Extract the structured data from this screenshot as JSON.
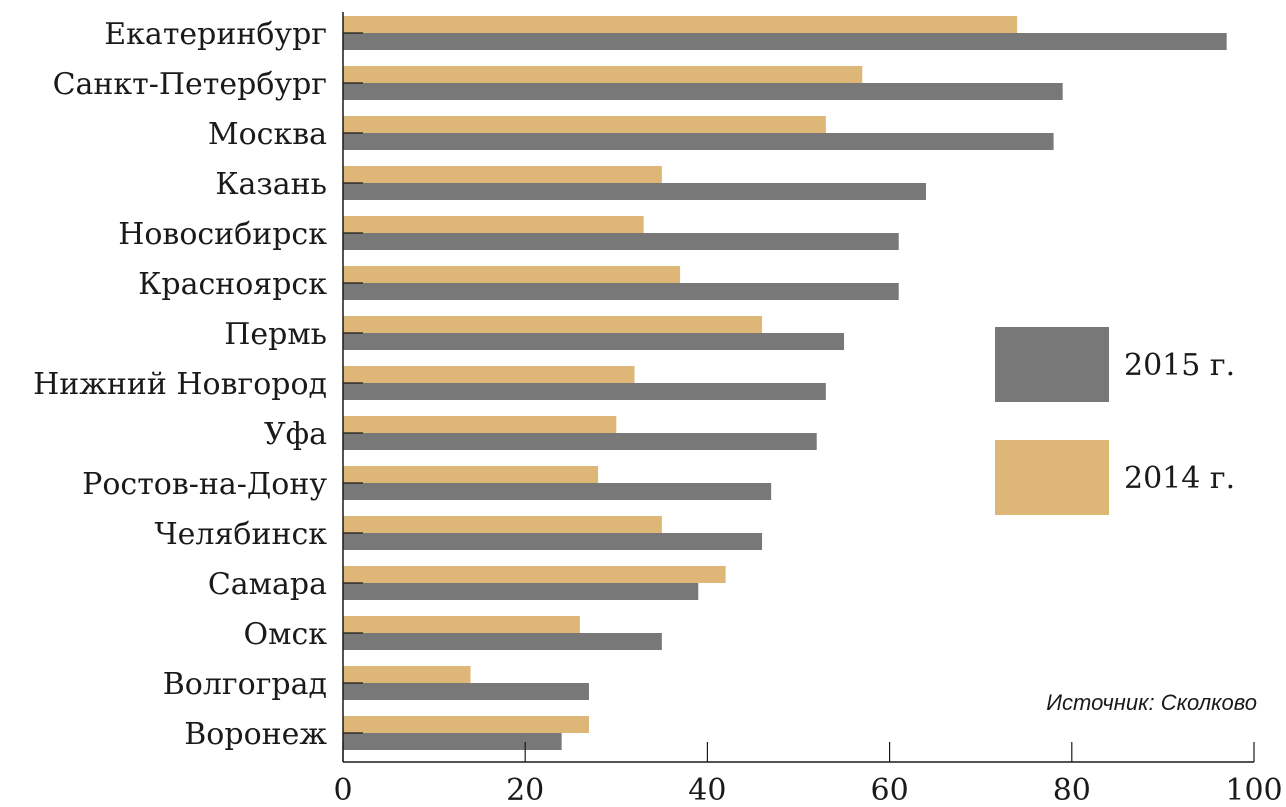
{
  "chart_data": {
    "type": "bar",
    "orientation": "horizontal",
    "categories": [
      "Екатеринбург",
      "Санкт-Петербург",
      "Москва",
      "Казань",
      "Новосибирск",
      "Красноярск",
      "Пермь",
      "Нижний Новгород",
      "Уфа",
      "Ростов-на-Дону",
      "Челябинск",
      "Самара",
      "Омск",
      "Волгоград",
      "Воронеж"
    ],
    "series": [
      {
        "name": "2014 г.",
        "color": "#deb677",
        "values": [
          74,
          57,
          53,
          35,
          33,
          37,
          46,
          32,
          30,
          28,
          35,
          42,
          26,
          14,
          27
        ]
      },
      {
        "name": "2015 г.",
        "color": "#787878",
        "values": [
          97,
          79,
          78,
          64,
          61,
          61,
          55,
          53,
          52,
          47,
          46,
          39,
          35,
          27,
          24
        ]
      }
    ],
    "xlim": [
      0,
      100
    ],
    "xticks": [
      0,
      20,
      40,
      60,
      80,
      100
    ],
    "xtick_labels": [
      "0",
      "20",
      "40",
      "60",
      "80",
      "100"
    ],
    "legend": {
      "placement": "right",
      "items": [
        {
          "label": "2015 г.",
          "color": "#787878"
        },
        {
          "label": "2014 г.",
          "color": "#deb677"
        }
      ]
    },
    "grid": false,
    "title": "",
    "xlabel": "",
    "ylabel": ""
  },
  "source": "Источник: Сколково"
}
